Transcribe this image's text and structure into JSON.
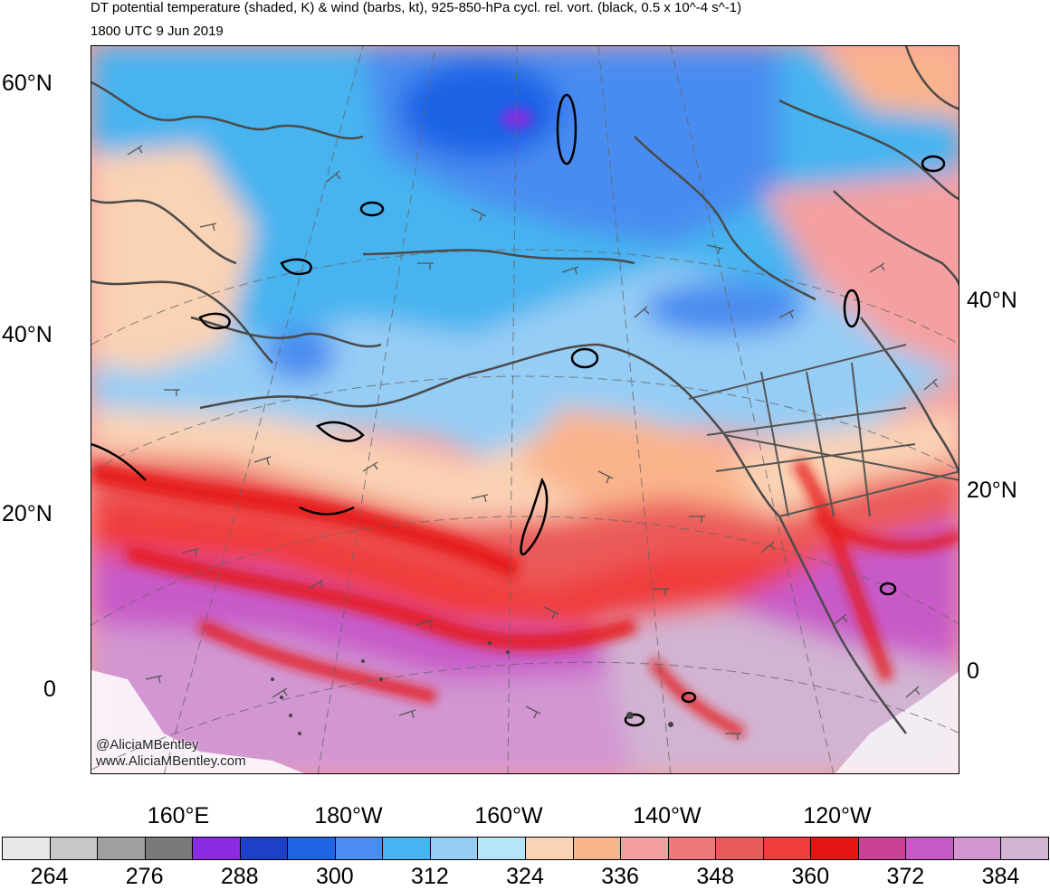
{
  "title": "DT potential temperature (shaded, K) & wind (barbs, kt), 925-850-hPa cycl. rel. vort. (black, 0.5 x 10^-4 s^-1)",
  "valid_time": "1800 UTC 9 Jun 2019",
  "credits": {
    "twitter": "@AliciaMBentley",
    "website": "www.AliciaMBentley.com"
  },
  "lat_labels_left": [
    "60°N",
    "40°N",
    "20°N",
    "0"
  ],
  "lat_labels_right": [
    "40°N",
    "20°N",
    "0"
  ],
  "lon_labels": [
    "160°E",
    "180°W",
    "160°W",
    "140°W",
    "120°W"
  ],
  "colorbar": {
    "colors": [
      "#e8e8e8",
      "#c8c8c8",
      "#a0a0a0",
      "#7a7a7a",
      "#8a2be2",
      "#1e3fc8",
      "#1e64e6",
      "#4a8cf0",
      "#46b4f0",
      "#96cdf5",
      "#b4e6f5",
      "#fad2b4",
      "#fab48c",
      "#f5a0a0",
      "#f07878",
      "#eb5a5a",
      "#f03c3c",
      "#e61414",
      "#c84196",
      "#c85ac8",
      "#d296d2",
      "#d2b4d2"
    ],
    "tick_labels": [
      "264",
      "276",
      "288",
      "300",
      "312",
      "324",
      "336",
      "348",
      "360",
      "372",
      "384"
    ]
  }
}
